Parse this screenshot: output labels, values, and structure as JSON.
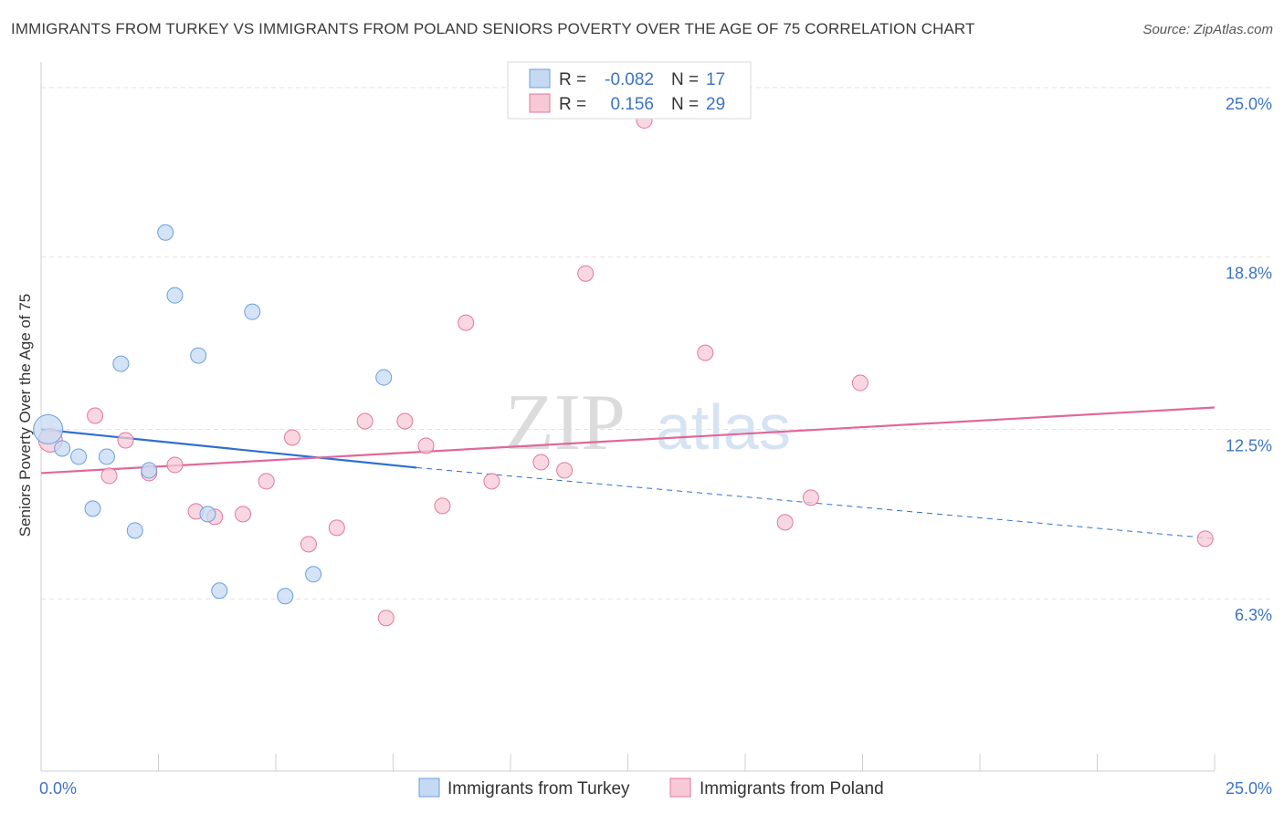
{
  "title": "IMMIGRANTS FROM TURKEY VS IMMIGRANTS FROM POLAND SENIORS POVERTY OVER THE AGE OF 75 CORRELATION CHART",
  "source": "Source: ZipAtlas.com",
  "watermark": {
    "zip": "ZIP",
    "atlas": "atlas"
  },
  "chart_data": {
    "type": "scatter",
    "title": "IMMIGRANTS FROM TURKEY VS IMMIGRANTS FROM POLAND SENIORS POVERTY OVER THE AGE OF 75 CORRELATION CHART",
    "xlabel": "",
    "ylabel": "Seniors Poverty Over the Age of 75",
    "xlim": [
      0,
      25
    ],
    "ylim": [
      0,
      25.6
    ],
    "x_tick_labels": [
      {
        "value": 0,
        "label": "0.0%"
      },
      {
        "value": 25,
        "label": "25.0%"
      }
    ],
    "y_tick_labels": [
      {
        "value": 6.3,
        "label": "6.3%"
      },
      {
        "value": 12.5,
        "label": "12.5%"
      },
      {
        "value": 18.8,
        "label": "18.8%"
      },
      {
        "value": 25.0,
        "label": "25.0%"
      }
    ],
    "grid": true,
    "legend": {
      "position": "top-center",
      "rows": [
        {
          "r_label": "R =",
          "r_value": "-0.082",
          "n_label": "N =",
          "n_value": "17"
        },
        {
          "r_label": "R =",
          "r_value": "0.156",
          "n_label": "N =",
          "n_value": "29"
        }
      ]
    },
    "series": [
      {
        "name": "Immigrants from Turkey",
        "color": "#6a9fe0",
        "fill": "#c5d9f3",
        "points": [
          [
            0.15,
            12.5
          ],
          [
            0.45,
            11.8
          ],
          [
            0.8,
            11.5
          ],
          [
            1.4,
            11.5
          ],
          [
            1.1,
            9.6
          ],
          [
            1.7,
            14.9
          ],
          [
            2.0,
            8.8
          ],
          [
            2.3,
            11.0
          ],
          [
            2.65,
            19.7
          ],
          [
            2.85,
            17.4
          ],
          [
            3.35,
            15.2
          ],
          [
            3.55,
            9.4
          ],
          [
            3.8,
            6.6
          ],
          [
            4.5,
            16.8
          ],
          [
            5.2,
            6.4
          ],
          [
            5.8,
            7.2
          ],
          [
            7.3,
            14.4
          ]
        ],
        "trend": {
          "x0": 0,
          "y0": 12.5,
          "x1": 8.0,
          "y1": 11.1,
          "dashed_to_x": 25,
          "dashed_to_y": 8.5
        }
      },
      {
        "name": "Immigrants from Poland",
        "color": "#e0789c",
        "fill": "#f7c9d7",
        "points": [
          [
            0.2,
            12.1
          ],
          [
            1.15,
            13.0
          ],
          [
            1.45,
            10.8
          ],
          [
            1.8,
            12.1
          ],
          [
            2.3,
            10.9
          ],
          [
            2.85,
            11.2
          ],
          [
            3.3,
            9.5
          ],
          [
            3.7,
            9.3
          ],
          [
            4.3,
            9.4
          ],
          [
            4.8,
            10.6
          ],
          [
            5.35,
            12.2
          ],
          [
            5.7,
            8.3
          ],
          [
            6.3,
            8.9
          ],
          [
            6.9,
            12.8
          ],
          [
            7.35,
            5.6
          ],
          [
            7.75,
            12.8
          ],
          [
            8.2,
            11.9
          ],
          [
            8.55,
            9.7
          ],
          [
            9.05,
            16.4
          ],
          [
            9.6,
            10.6
          ],
          [
            10.65,
            11.3
          ],
          [
            11.15,
            11.0
          ],
          [
            11.6,
            18.2
          ],
          [
            12.85,
            23.8
          ],
          [
            14.15,
            15.3
          ],
          [
            15.85,
            9.1
          ],
          [
            16.4,
            10.0
          ],
          [
            17.45,
            14.2
          ],
          [
            24.8,
            8.5
          ]
        ],
        "trend": {
          "x0": 0,
          "y0": 10.9,
          "x1": 25,
          "y1": 13.3
        }
      }
    ]
  },
  "bottom_legend": [
    {
      "label": "Immigrants from Turkey",
      "color": "#c5d9f3",
      "border": "#6a9fe0"
    },
    {
      "label": "Immigrants from Poland",
      "color": "#f7c9d7",
      "border": "#e0789c"
    }
  ]
}
